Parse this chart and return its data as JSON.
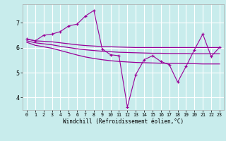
{
  "xlabel": "Windchill (Refroidissement éolien,°C)",
  "bg_color": "#c8ecec",
  "line_color": "#990099",
  "grid_color": "#ffffff",
  "xlim": [
    -0.5,
    23.5
  ],
  "ylim": [
    3.5,
    7.75
  ],
  "yticks": [
    4,
    5,
    6,
    7
  ],
  "xticks": [
    0,
    1,
    2,
    3,
    4,
    5,
    6,
    7,
    8,
    9,
    10,
    11,
    12,
    13,
    14,
    15,
    16,
    17,
    18,
    19,
    20,
    21,
    22,
    23
  ],
  "series1_y": [
    6.35,
    6.28,
    6.26,
    6.24,
    6.2,
    6.16,
    6.12,
    6.09,
    6.07,
    6.05,
    6.04,
    6.03,
    6.02,
    6.01,
    6.01,
    6.01,
    6.01,
    6.01,
    6.01,
    6.01,
    6.01,
    6.01,
    6.01,
    6.01
  ],
  "series2_y": [
    6.28,
    6.2,
    6.16,
    6.12,
    6.06,
    6.01,
    5.96,
    5.92,
    5.89,
    5.86,
    5.84,
    5.82,
    5.81,
    5.8,
    5.79,
    5.78,
    5.78,
    5.77,
    5.77,
    5.77,
    5.76,
    5.76,
    5.76,
    5.76
  ],
  "series3_y": [
    6.22,
    6.1,
    6.04,
    5.98,
    5.89,
    5.8,
    5.71,
    5.63,
    5.57,
    5.52,
    5.48,
    5.45,
    5.43,
    5.41,
    5.4,
    5.39,
    5.38,
    5.37,
    5.37,
    5.36,
    5.36,
    5.35,
    5.35,
    5.35
  ],
  "main_x": [
    0,
    1,
    2,
    3,
    4,
    5,
    6,
    7,
    8,
    9,
    10,
    11,
    12,
    13,
    14,
    15,
    16,
    17,
    18,
    19,
    20,
    21,
    22,
    23
  ],
  "main_y": [
    6.35,
    6.28,
    6.5,
    6.55,
    6.65,
    6.88,
    6.95,
    7.28,
    7.5,
    5.95,
    5.72,
    5.68,
    3.62,
    4.92,
    5.52,
    5.68,
    5.45,
    5.32,
    4.62,
    5.25,
    5.92,
    6.55,
    5.65,
    6.02
  ]
}
